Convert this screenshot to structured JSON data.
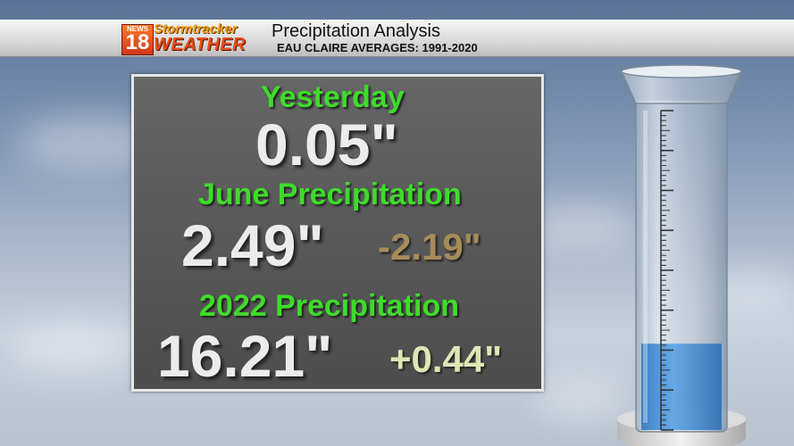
{
  "header": {
    "logo_news": "NEWS",
    "logo_number": "18",
    "logo_top": "Stormtracker",
    "logo_bottom": "WEATHER",
    "title": "Precipitation Analysis",
    "subtitle": "EAU CLAIRE AVERAGES: 1991-2020"
  },
  "panel": {
    "yesterday_label": "Yesterday",
    "yesterday_value": "0.05\"",
    "month_label": "June Precipitation",
    "month_value": "2.49\"",
    "month_departure": "-2.19\"",
    "year_label": "2022 Precipitation",
    "year_value": "16.21\"",
    "year_departure": "+0.44\""
  },
  "gauge": {
    "fill_level": 0.27,
    "water_color": "#3f8fd6"
  },
  "colors": {
    "label_green": "#3fdb2b",
    "departure_negative": "#a68c5a",
    "departure_positive": "#dfe6b4"
  }
}
